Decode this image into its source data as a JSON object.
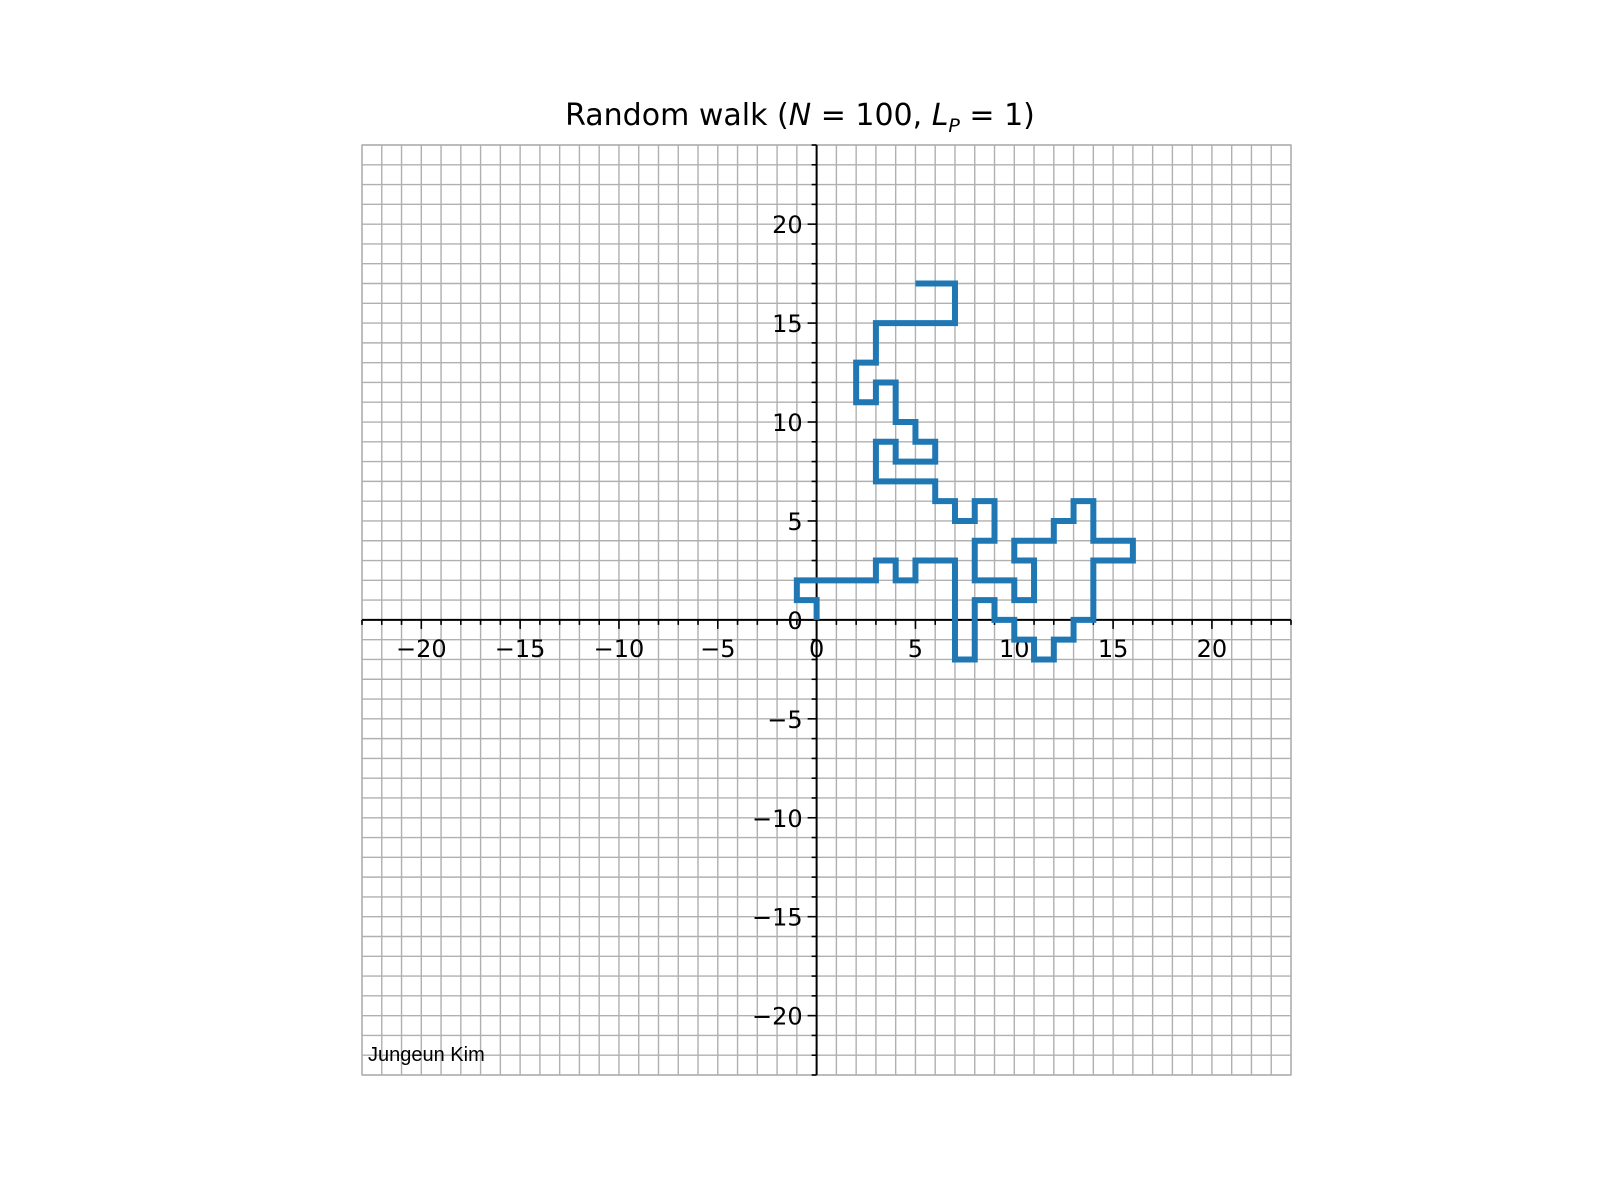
{
  "chart_data": {
    "type": "line",
    "title": {
      "prefix": "Random walk (",
      "n_symbol": "N",
      "n_eq": " = 100, ",
      "l_symbol": "L",
      "l_sub": "P",
      "l_eq": " = 1)"
    },
    "xlabel": "",
    "ylabel": "",
    "xlim": [
      -23,
      24
    ],
    "ylim": [
      -23,
      24
    ],
    "x_ticks": [
      -20,
      -15,
      -10,
      -5,
      0,
      5,
      10,
      15,
      20
    ],
    "y_ticks": [
      -20,
      -15,
      -10,
      -5,
      0,
      5,
      10,
      15,
      20
    ],
    "x_tick_labels": [
      "−20",
      "−15",
      "−10",
      "−5",
      "0",
      "5",
      "10",
      "15",
      "20"
    ],
    "y_tick_labels": [
      "−20",
      "−15",
      "−10",
      "−5",
      "0",
      "5",
      "10",
      "15",
      "20"
    ],
    "grid": true,
    "grid_step": 1,
    "minor_tick_step": 1,
    "line_color": "#1f77b4",
    "grid_color": "#b0b0b0",
    "series": [
      {
        "points": [
          [
            0,
            0
          ],
          [
            0,
            1
          ],
          [
            -1,
            1
          ],
          [
            -1,
            2
          ],
          [
            0,
            2
          ],
          [
            1,
            2
          ],
          [
            2,
            2
          ],
          [
            3,
            2
          ],
          [
            3,
            3
          ],
          [
            4,
            3
          ],
          [
            4,
            2
          ],
          [
            5,
            2
          ],
          [
            5,
            3
          ],
          [
            6,
            3
          ],
          [
            7,
            3
          ],
          [
            7,
            2
          ],
          [
            7,
            1
          ],
          [
            7,
            0
          ],
          [
            7,
            -1
          ],
          [
            7,
            -2
          ],
          [
            8,
            -2
          ],
          [
            8,
            -1
          ],
          [
            8,
            0
          ],
          [
            8,
            1
          ],
          [
            9,
            1
          ],
          [
            9,
            0
          ],
          [
            10,
            0
          ],
          [
            10,
            -1
          ],
          [
            11,
            -1
          ],
          [
            11,
            -2
          ],
          [
            12,
            -2
          ],
          [
            12,
            -1
          ],
          [
            13,
            -1
          ],
          [
            13,
            0
          ],
          [
            14,
            0
          ],
          [
            14,
            1
          ],
          [
            14,
            2
          ],
          [
            14,
            3
          ],
          [
            15,
            3
          ],
          [
            16,
            3
          ],
          [
            16,
            4
          ],
          [
            15,
            4
          ],
          [
            14,
            4
          ],
          [
            14,
            5
          ],
          [
            14,
            6
          ],
          [
            13,
            6
          ],
          [
            13,
            5
          ],
          [
            12,
            5
          ],
          [
            12,
            4
          ],
          [
            11,
            4
          ],
          [
            10,
            4
          ],
          [
            10,
            3
          ],
          [
            11,
            3
          ],
          [
            11,
            2
          ],
          [
            11,
            1
          ],
          [
            10,
            1
          ],
          [
            10,
            2
          ],
          [
            9,
            2
          ],
          [
            8,
            2
          ],
          [
            8,
            3
          ],
          [
            8,
            4
          ],
          [
            9,
            4
          ],
          [
            9,
            5
          ],
          [
            9,
            6
          ],
          [
            8,
            6
          ],
          [
            8,
            5
          ],
          [
            7,
            5
          ],
          [
            7,
            6
          ],
          [
            6,
            6
          ],
          [
            6,
            7
          ],
          [
            5,
            7
          ],
          [
            4,
            7
          ],
          [
            3,
            7
          ],
          [
            3,
            8
          ],
          [
            3,
            9
          ],
          [
            4,
            9
          ],
          [
            4,
            8
          ],
          [
            5,
            8
          ],
          [
            6,
            8
          ],
          [
            6,
            9
          ],
          [
            5,
            9
          ],
          [
            5,
            10
          ],
          [
            4,
            10
          ],
          [
            4,
            11
          ],
          [
            4,
            12
          ],
          [
            3,
            12
          ],
          [
            3,
            11
          ],
          [
            2,
            11
          ],
          [
            2,
            12
          ],
          [
            2,
            13
          ],
          [
            3,
            13
          ],
          [
            3,
            14
          ],
          [
            3,
            15
          ],
          [
            4,
            15
          ],
          [
            5,
            15
          ],
          [
            6,
            15
          ],
          [
            7,
            15
          ],
          [
            7,
            16
          ],
          [
            7,
            17
          ],
          [
            6,
            17
          ],
          [
            5,
            17
          ]
        ]
      }
    ]
  },
  "annotation": {
    "credit": "Jungeun Kim"
  }
}
